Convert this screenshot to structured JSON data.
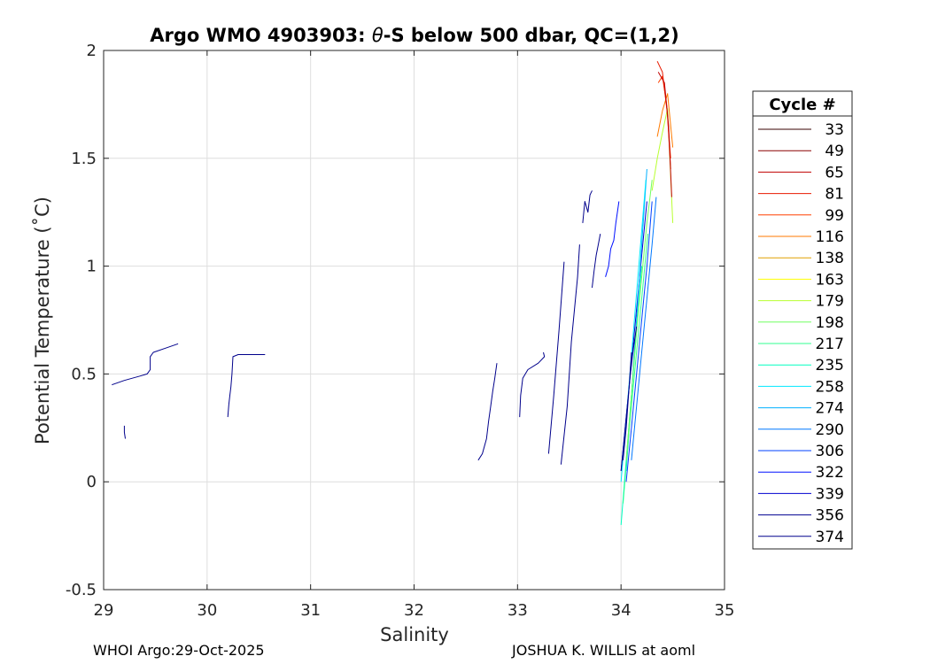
{
  "chart_data": {
    "type": "line",
    "title_prefix": "Argo WMO 4903903: ",
    "title_symbol": "θ",
    "title_suffix": "-S below 500 dbar,  QC=(1,2)",
    "xlabel": "Salinity",
    "ylabel": "Potential Temperature (˚C)",
    "xlim": [
      29,
      35
    ],
    "ylim": [
      -0.5,
      2
    ],
    "xticks": [
      "29",
      "30",
      "31",
      "32",
      "33",
      "34",
      "35"
    ],
    "yticks": [
      "-0.5",
      "0",
      "0.5",
      "1",
      "1.5",
      "2"
    ],
    "grid": true,
    "legend": {
      "title": "Cycle #",
      "placement": "outside-right",
      "entries": [
        {
          "label": "33",
          "color": "#3a0000"
        },
        {
          "label": "49",
          "color": "#8a0000"
        },
        {
          "label": "65",
          "color": "#c00000"
        },
        {
          "label": "81",
          "color": "#e81a00"
        },
        {
          "label": "99",
          "color": "#ff4000"
        },
        {
          "label": "116",
          "color": "#ff7a00"
        },
        {
          "label": "138",
          "color": "#e0a000"
        },
        {
          "label": "163",
          "color": "#ffff00"
        },
        {
          "label": "179",
          "color": "#b8ff30"
        },
        {
          "label": "198",
          "color": "#70ff60"
        },
        {
          "label": "217",
          "color": "#30ff90"
        },
        {
          "label": "235",
          "color": "#00ffc0"
        },
        {
          "label": "258",
          "color": "#00e8ff"
        },
        {
          "label": "274",
          "color": "#00b0ff"
        },
        {
          "label": "290",
          "color": "#0078ff"
        },
        {
          "label": "306",
          "color": "#0040ff"
        },
        {
          "label": "322",
          "color": "#0010ff"
        },
        {
          "label": "339",
          "color": "#0000d0"
        },
        {
          "label": "356",
          "color": "#000090"
        },
        {
          "label": "374",
          "color": "#00008b"
        }
      ]
    },
    "series": [
      {
        "color": "#00008b",
        "x": [
          29.08,
          29.2,
          29.35,
          29.42,
          29.45,
          29.45,
          29.48,
          29.6,
          29.72
        ],
        "y": [
          0.45,
          0.47,
          0.49,
          0.5,
          0.52,
          0.58,
          0.6,
          0.62,
          0.64
        ]
      },
      {
        "color": "#00008b",
        "x": [
          29.2,
          29.2,
          29.21
        ],
        "y": [
          0.26,
          0.23,
          0.2
        ]
      },
      {
        "color": "#00008b",
        "x": [
          30.2,
          30.21,
          30.22,
          30.23,
          30.24,
          30.25,
          30.3,
          30.4,
          30.56
        ],
        "y": [
          0.3,
          0.36,
          0.4,
          0.44,
          0.5,
          0.58,
          0.59,
          0.59,
          0.59
        ]
      },
      {
        "color": "#00008b",
        "x": [
          32.62,
          32.66,
          32.7,
          32.72,
          32.74,
          32.76,
          32.78,
          32.8
        ],
        "y": [
          0.1,
          0.13,
          0.2,
          0.28,
          0.35,
          0.42,
          0.48,
          0.55
        ]
      },
      {
        "color": "#00008b",
        "x": [
          33.02,
          33.03,
          33.05,
          33.1,
          33.2,
          33.26,
          33.25
        ],
        "y": [
          0.3,
          0.4,
          0.48,
          0.52,
          0.55,
          0.58,
          0.6
        ]
      },
      {
        "color": "#00008b",
        "x": [
          33.3,
          33.35,
          33.4,
          33.45
        ],
        "y": [
          0.13,
          0.4,
          0.7,
          1.02
        ]
      },
      {
        "color": "#00008b",
        "x": [
          33.42,
          33.48,
          33.52,
          33.58,
          33.6
        ],
        "y": [
          0.08,
          0.35,
          0.65,
          0.95,
          1.1
        ]
      },
      {
        "color": "#00008b",
        "x": [
          33.63,
          33.65,
          33.68,
          33.7,
          33.72
        ],
        "y": [
          1.2,
          1.3,
          1.25,
          1.33,
          1.35
        ]
      },
      {
        "color": "#00008b",
        "x": [
          33.72,
          33.74,
          33.76,
          33.78,
          33.8
        ],
        "y": [
          0.9,
          0.98,
          1.05,
          1.1,
          1.15
        ]
      },
      {
        "color": "#0010ff",
        "x": [
          33.85,
          33.88,
          33.9,
          33.93,
          33.95,
          33.98
        ],
        "y": [
          0.95,
          1.0,
          1.08,
          1.12,
          1.2,
          1.3
        ]
      },
      {
        "color": "#0000d0",
        "x": [
          34.0,
          34.05,
          34.1,
          34.15,
          34.2,
          34.25
        ],
        "y": [
          0.05,
          0.3,
          0.55,
          0.8,
          1.05,
          1.3
        ]
      },
      {
        "color": "#0040ff",
        "x": [
          34.05,
          34.1,
          34.15,
          34.2,
          34.25,
          34.3
        ],
        "y": [
          0.0,
          0.25,
          0.5,
          0.75,
          1.0,
          1.3
        ]
      },
      {
        "color": "#0078ff",
        "x": [
          34.1,
          34.15,
          34.2,
          34.25,
          34.3,
          34.34
        ],
        "y": [
          0.1,
          0.35,
          0.6,
          0.85,
          1.1,
          1.32
        ]
      },
      {
        "color": "#00b0ff",
        "x": [
          34.05,
          34.1,
          34.15,
          34.2,
          34.25
        ],
        "y": [
          0.05,
          0.4,
          0.75,
          1.1,
          1.45
        ]
      },
      {
        "color": "#00e8ff",
        "x": [
          34.0,
          34.06,
          34.12,
          34.18,
          34.24
        ],
        "y": [
          0.0,
          0.35,
          0.7,
          1.05,
          1.4
        ]
      },
      {
        "color": "#00ffc0",
        "x": [
          34.0,
          34.05,
          34.1,
          34.15,
          34.2
        ],
        "y": [
          -0.2,
          0.1,
          0.4,
          0.7,
          1.0
        ]
      },
      {
        "color": "#30ff90",
        "x": [
          34.02,
          34.08,
          34.14,
          34.2,
          34.26
        ],
        "y": [
          -0.1,
          0.25,
          0.55,
          0.85,
          1.15
        ]
      },
      {
        "color": "#70ff60",
        "x": [
          34.05,
          34.1,
          34.15,
          34.2,
          34.25,
          34.3
        ],
        "y": [
          0.1,
          0.4,
          0.7,
          0.95,
          1.2,
          1.4
        ]
      },
      {
        "color": "#b8ff30",
        "x": [
          34.3,
          34.35,
          34.4,
          34.45,
          34.5
        ],
        "y": [
          1.35,
          1.5,
          1.62,
          1.73,
          1.2
        ]
      },
      {
        "color": "#ff7a00",
        "x": [
          34.35,
          34.4,
          34.45,
          34.5
        ],
        "y": [
          1.6,
          1.72,
          1.8,
          1.55
        ]
      },
      {
        "color": "#ff4000",
        "x": [
          34.36,
          34.4,
          34.44,
          34.48
        ],
        "y": [
          1.85,
          1.88,
          1.75,
          1.5
        ]
      },
      {
        "color": "#e81a00",
        "x": [
          34.35,
          34.4,
          34.45,
          34.48
        ],
        "y": [
          1.95,
          1.9,
          1.7,
          1.45
        ]
      },
      {
        "color": "#c00000",
        "x": [
          34.36,
          34.42,
          34.46,
          34.49
        ],
        "y": [
          1.9,
          1.85,
          1.65,
          1.32
        ]
      },
      {
        "color": "#000090",
        "x": [
          34.0,
          34.03,
          34.06,
          34.09,
          34.12,
          34.15
        ],
        "y": [
          0.05,
          0.2,
          0.35,
          0.5,
          0.62,
          0.72
        ]
      },
      {
        "color": "#00008b",
        "x": [
          34.02,
          34.05,
          34.08,
          34.1
        ],
        "y": [
          0.1,
          0.25,
          0.45,
          0.6
        ]
      }
    ]
  },
  "footer": {
    "left": "WHOI Argo:29-Oct-2025",
    "right": "JOSHUA K. WILLIS at aoml"
  }
}
